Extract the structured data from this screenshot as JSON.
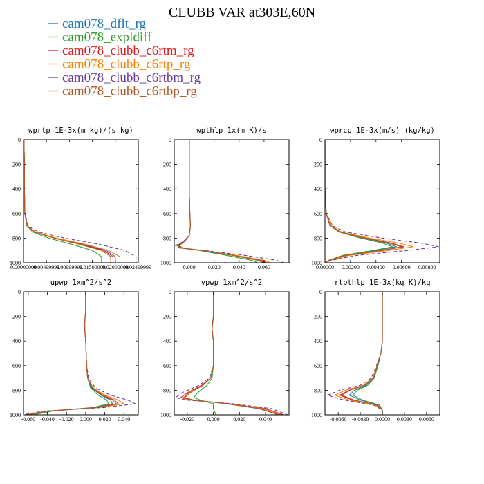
{
  "figure": {
    "title": "CLUBB VAR at303E,60N"
  },
  "legend": [
    {
      "name": "cam078_dflt_rg",
      "color": "#1f77b4"
    },
    {
      "name": "cam078_expldiff",
      "color": "#2ca02c"
    },
    {
      "name": "cam078_clubb_c6rtm_rg",
      "color": "#e41a1c"
    },
    {
      "name": "cam078_clubb_c6rtp_rg",
      "color": "#ff7f00"
    },
    {
      "name": "cam078_clubb_c6rtbm_rg",
      "color": "#6a3d9a"
    },
    {
      "name": "cam078_clubb_c6rtbp_rg",
      "color": "#b15928"
    }
  ],
  "chart_data": [
    {
      "type": "line",
      "title": "wprtp  1E-3x(m kg)/(s kg)",
      "xlim": [
        0,
        0.025
      ],
      "ylim": [
        1000,
        0
      ],
      "xticks": [
        "0.00000000",
        "0.00499999",
        "0.00999999",
        "0.01500000",
        "0.02000000",
        "0.02499999"
      ],
      "yticks": [
        "0",
        "200",
        "400",
        "600",
        "800",
        "1000"
      ],
      "series_y": [
        0,
        200,
        400,
        600,
        700,
        750,
        800,
        850,
        900,
        950,
        1000
      ],
      "series": [
        {
          "name": "cam078_dflt_rg",
          "values": [
            0.0001,
            0.0002,
            0.0002,
            0.0003,
            0.0008,
            0.0025,
            0.007,
            0.013,
            0.018,
            0.02,
            0.02
          ]
        },
        {
          "name": "cam078_expldiff",
          "values": [
            0.0001,
            0.0002,
            0.0002,
            0.0003,
            0.0007,
            0.002,
            0.0055,
            0.0105,
            0.015,
            0.017,
            0.017
          ]
        },
        {
          "name": "cam078_clubb_c6rtm_rg",
          "values": [
            0.0001,
            0.0002,
            0.0002,
            0.0003,
            0.0008,
            0.0024,
            0.0068,
            0.0125,
            0.0175,
            0.0195,
            0.0195
          ]
        },
        {
          "name": "cam078_clubb_c6rtp_rg",
          "values": [
            0.0001,
            0.0002,
            0.0002,
            0.0003,
            0.0008,
            0.0026,
            0.0072,
            0.0135,
            0.0185,
            0.021,
            0.021
          ]
        },
        {
          "name": "cam078_clubb_c6rtbm_rg",
          "dashed": true,
          "values": [
            0.0001,
            0.0002,
            0.0002,
            0.0003,
            0.001,
            0.0032,
            0.009,
            0.0165,
            0.022,
            0.0245,
            0.0245
          ]
        },
        {
          "name": "cam078_clubb_c6rtbp_rg",
          "values": [
            0.0001,
            0.0002,
            0.0002,
            0.0003,
            0.0008,
            0.0024,
            0.0066,
            0.0122,
            0.017,
            0.019,
            0.019
          ]
        }
      ]
    },
    {
      "type": "line",
      "title": "wpthlp  1x(m K)/s",
      "xlim": [
        -0.012,
        0.08
      ],
      "ylim": [
        1000,
        0
      ],
      "xticks": [
        "0.000",
        "0.020",
        "0.040",
        "0.060"
      ],
      "xtick_values": [
        0,
        0.02,
        0.04,
        0.06
      ],
      "yticks": [
        "0",
        "200",
        "400",
        "600",
        "800",
        "1000"
      ],
      "series_y": [
        0,
        200,
        400,
        600,
        700,
        780,
        830,
        860,
        880,
        900,
        940,
        980,
        1000
      ],
      "series": [
        {
          "name": "cam078_dflt_rg",
          "values": [
            0.0,
            0.0,
            0.0,
            0.0005,
            0.001,
            0.0,
            -0.004,
            -0.008,
            -0.006,
            0.01,
            0.035,
            0.055,
            0.06
          ]
        },
        {
          "name": "cam078_expldiff",
          "values": [
            0.0,
            0.0,
            0.0,
            0.0005,
            0.001,
            0.0,
            -0.005,
            -0.01,
            -0.007,
            0.008,
            0.03,
            0.05,
            0.055
          ]
        },
        {
          "name": "cam078_clubb_c6rtm_rg",
          "values": [
            0.0,
            0.0,
            0.0,
            0.0005,
            0.001,
            0.0,
            -0.004,
            -0.009,
            -0.006,
            0.01,
            0.036,
            0.058,
            0.062
          ]
        },
        {
          "name": "cam078_clubb_c6rtp_rg",
          "values": [
            0.0,
            0.0,
            0.0,
            0.0005,
            0.001,
            0.0,
            -0.004,
            -0.008,
            -0.005,
            0.011,
            0.038,
            0.06,
            0.065
          ]
        },
        {
          "name": "cam078_clubb_c6rtbm_rg",
          "dashed": true,
          "values": [
            0.0,
            0.0,
            0.0,
            0.0005,
            0.001,
            0.0,
            -0.005,
            -0.011,
            -0.008,
            0.012,
            0.045,
            0.07,
            0.076
          ]
        },
        {
          "name": "cam078_clubb_c6rtbp_rg",
          "values": [
            0.0,
            0.0,
            0.0,
            0.0005,
            0.001,
            0.0,
            -0.004,
            -0.008,
            -0.006,
            0.01,
            0.035,
            0.056,
            0.061
          ]
        }
      ]
    },
    {
      "type": "line",
      "title": "wprcp  1E-3x(m/s) (kg/kg)",
      "xlim": [
        0,
        0.009
      ],
      "ylim": [
        1000,
        0
      ],
      "xticks": [
        "0.00000",
        "0.00200",
        "0.00400",
        "0.00600",
        "0.00800"
      ],
      "xtick_values": [
        0,
        0.002,
        0.004,
        0.006,
        0.008
      ],
      "yticks": [
        "0",
        "200",
        "400",
        "600",
        "800",
        "1000"
      ],
      "series_y": [
        0,
        200,
        400,
        600,
        700,
        750,
        800,
        840,
        870,
        900,
        940,
        980,
        1000
      ],
      "series": [
        {
          "name": "cam078_dflt_rg",
          "values": [
            0,
            0,
            0,
            0.0001,
            0.0004,
            0.0012,
            0.003,
            0.0048,
            0.0056,
            0.004,
            0.0015,
            0.0003,
            0
          ]
        },
        {
          "name": "cam078_expldiff",
          "values": [
            0,
            0,
            0,
            0.0001,
            0.0004,
            0.0011,
            0.0028,
            0.0045,
            0.0053,
            0.0038,
            0.0014,
            0.0003,
            0
          ]
        },
        {
          "name": "cam078_clubb_c6rtm_rg",
          "values": [
            0,
            0,
            0,
            0.0001,
            0.0004,
            0.0012,
            0.0032,
            0.0052,
            0.0062,
            0.0045,
            0.0017,
            0.0003,
            0
          ]
        },
        {
          "name": "cam078_clubb_c6rtp_rg",
          "values": [
            0,
            0,
            0,
            0.0001,
            0.0005,
            0.0013,
            0.0035,
            0.0058,
            0.0069,
            0.005,
            0.0019,
            0.0004,
            0
          ]
        },
        {
          "name": "cam078_clubb_c6rtbm_rg",
          "dashed": true,
          "values": [
            0,
            0,
            0,
            0.0001,
            0.0006,
            0.0016,
            0.0045,
            0.0075,
            0.0089,
            0.0065,
            0.0025,
            0.0005,
            0
          ]
        },
        {
          "name": "cam078_clubb_c6rtbp_rg",
          "values": [
            0,
            0,
            0,
            0.0001,
            0.0004,
            0.0012,
            0.0031,
            0.005,
            0.006,
            0.0044,
            0.0016,
            0.0003,
            0
          ]
        }
      ]
    },
    {
      "type": "line",
      "title": "upwp  1xm^2/s^2",
      "xlim": [
        -0.065,
        0.055
      ],
      "ylim": [
        1000,
        0
      ],
      "xticks": [
        "-0.060",
        "-0.040",
        "-0.020",
        "0.000",
        "0.020",
        "0.040"
      ],
      "xtick_values": [
        -0.06,
        -0.04,
        -0.02,
        0,
        0.02,
        0.04
      ],
      "yticks": [
        "0",
        "200",
        "400",
        "600",
        "800",
        "1000"
      ],
      "series_y": [
        0,
        150,
        250,
        300,
        400,
        600,
        700,
        780,
        840,
        880,
        910,
        940,
        970,
        1000
      ],
      "series": [
        {
          "name": "cam078_dflt_rg",
          "values": [
            0,
            0,
            -0.001,
            -0.001,
            0,
            0.001,
            0.002,
            0.006,
            0.016,
            0.026,
            0.028,
            0.01,
            -0.04,
            -0.06
          ]
        },
        {
          "name": "cam078_expldiff",
          "values": [
            0,
            0,
            -0.001,
            -0.001,
            0,
            0.001,
            0.002,
            0.005,
            0.013,
            0.022,
            0.024,
            0.008,
            -0.035,
            -0.055
          ]
        },
        {
          "name": "cam078_clubb_c6rtm_rg",
          "values": [
            0,
            0,
            -0.001,
            -0.001,
            0,
            0.001,
            0.002,
            0.007,
            0.018,
            0.03,
            0.034,
            0.012,
            -0.04,
            -0.062
          ]
        },
        {
          "name": "cam078_clubb_c6rtp_rg",
          "values": [
            0,
            0,
            -0.001,
            -0.001,
            0,
            0.001,
            0.002,
            0.008,
            0.02,
            0.034,
            0.04,
            0.015,
            -0.042,
            -0.063
          ]
        },
        {
          "name": "cam078_clubb_c6rtbm_rg",
          "dashed": true,
          "values": [
            0,
            0,
            -0.001,
            -0.001,
            0,
            0.001,
            0.003,
            0.01,
            0.026,
            0.044,
            0.052,
            0.02,
            -0.045,
            -0.065
          ]
        },
        {
          "name": "cam078_clubb_c6rtbp_rg",
          "values": [
            0,
            0,
            -0.001,
            -0.001,
            0,
            0.001,
            0.002,
            0.007,
            0.017,
            0.028,
            0.032,
            0.011,
            -0.04,
            -0.06
          ]
        }
      ]
    },
    {
      "type": "line",
      "title": "vpwp  1xm^2/s^2",
      "xlim": [
        -0.03,
        0.058
      ],
      "ylim": [
        1000,
        0
      ],
      "xticks": [
        "-0.020",
        "0.000",
        "0.020",
        "0.040"
      ],
      "xtick_values": [
        -0.02,
        0,
        0.02,
        0.04
      ],
      "yticks": [
        "0",
        "200",
        "400",
        "600",
        "800",
        "1000"
      ],
      "series_y": [
        0,
        200,
        300,
        400,
        600,
        700,
        760,
        820,
        860,
        880,
        910,
        950,
        1000
      ],
      "series": [
        {
          "name": "cam078_dflt_rg",
          "values": [
            0,
            0,
            -0.001,
            0,
            0,
            -0.002,
            -0.008,
            -0.018,
            -0.022,
            -0.015,
            0.01,
            0.035,
            0.05
          ]
        },
        {
          "name": "cam078_expldiff",
          "values": [
            0,
            0,
            -0.001,
            0,
            0,
            -0.001,
            -0.005,
            -0.012,
            -0.015,
            -0.01,
            0.0,
            0.0,
            0.002
          ]
        },
        {
          "name": "cam078_clubb_c6rtm_rg",
          "values": [
            0,
            0,
            -0.001,
            0,
            0,
            -0.002,
            -0.009,
            -0.02,
            -0.025,
            -0.017,
            0.012,
            0.04,
            0.054
          ]
        },
        {
          "name": "cam078_clubb_c6rtp_rg",
          "values": [
            0,
            0,
            -0.001,
            0,
            0,
            -0.002,
            -0.008,
            -0.019,
            -0.023,
            -0.016,
            0.011,
            0.038,
            0.052
          ]
        },
        {
          "name": "cam078_clubb_c6rtbm_rg",
          "dashed": true,
          "values": [
            0,
            0,
            -0.001,
            0,
            0,
            -0.003,
            -0.011,
            -0.024,
            -0.029,
            -0.02,
            0.015,
            0.045,
            0.057
          ]
        },
        {
          "name": "cam078_clubb_c6rtbp_rg",
          "values": [
            0,
            0,
            -0.001,
            0,
            0,
            -0.002,
            -0.008,
            -0.018,
            -0.022,
            -0.015,
            0.01,
            0.036,
            0.05
          ]
        }
      ]
    },
    {
      "type": "line",
      "title": "rtpthlp  1E-3x(kg K)/kg",
      "xlim": [
        -0.0078,
        0.0078
      ],
      "ylim": [
        1000,
        0
      ],
      "xticks": [
        "-0.0060",
        "-0.0030",
        "0.0000",
        "0.0030",
        "0.0060"
      ],
      "xtick_values": [
        -0.006,
        -0.003,
        0,
        0.003,
        0.006
      ],
      "yticks": [
        "0",
        "200",
        "400",
        "600",
        "800",
        "1000"
      ],
      "series_y": [
        0,
        200,
        400,
        500,
        600,
        700,
        760,
        800,
        840,
        880,
        920,
        960,
        1000
      ],
      "series": [
        {
          "name": "cam078_dflt_rg",
          "values": [
            0,
            0,
            0,
            -0.0002,
            -0.0006,
            -0.0012,
            -0.0022,
            -0.0038,
            -0.0045,
            -0.003,
            -0.0005,
            0.0,
            0.0
          ]
        },
        {
          "name": "cam078_expldiff",
          "values": [
            0,
            0,
            0,
            -0.0002,
            -0.0006,
            -0.0011,
            -0.002,
            -0.0034,
            -0.004,
            -0.0027,
            -0.0004,
            0.0,
            0.0
          ]
        },
        {
          "name": "cam078_clubb_c6rtm_rg",
          "values": [
            0,
            0,
            0,
            -0.0002,
            -0.0007,
            -0.0013,
            -0.0025,
            -0.0045,
            -0.0058,
            -0.004,
            -0.0008,
            0.0,
            0.0
          ]
        },
        {
          "name": "cam078_clubb_c6rtp_rg",
          "values": [
            0,
            0,
            0,
            -0.0002,
            -0.0007,
            -0.0013,
            -0.0026,
            -0.005,
            -0.0065,
            -0.0045,
            -0.001,
            0.0,
            0.0
          ]
        },
        {
          "name": "cam078_clubb_c6rtbm_rg",
          "dashed": true,
          "values": [
            0,
            0,
            0,
            -0.0002,
            -0.0008,
            -0.0015,
            -0.003,
            -0.0058,
            -0.0075,
            -0.0052,
            -0.0012,
            0.0,
            0.0
          ]
        },
        {
          "name": "cam078_clubb_c6rtbp_rg",
          "values": [
            0,
            0,
            0,
            -0.0002,
            -0.0007,
            -0.0012,
            -0.0024,
            -0.0044,
            -0.0055,
            -0.0038,
            -0.0007,
            0.0,
            0.0
          ]
        }
      ]
    }
  ]
}
